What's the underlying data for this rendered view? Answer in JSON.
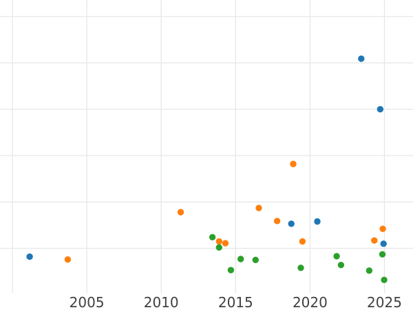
{
  "figure": {
    "background": "#ffffff",
    "grid_color": "#e7e7e7",
    "tick_label_color": "#3f3f3f"
  },
  "chart_data": {
    "type": "scatter",
    "title": "",
    "xlabel": "",
    "ylabel": "",
    "legend_position": "none",
    "grid": true,
    "x_tick_labels": [
      "2005",
      "2010",
      "2015",
      "2020",
      "2025"
    ],
    "x_tick_values": [
      2005,
      2010,
      2015,
      2020,
      2025
    ],
    "x_gridline_values": [
      2000,
      2005,
      2010,
      2015,
      2020,
      2025
    ],
    "xlim": [
      1999.17,
      2026.92
    ],
    "y_tick_labels_visible": false,
    "y_gridline_units": [
      1,
      2,
      3,
      4,
      5,
      6
    ],
    "ylim_units": [
      0,
      6.36
    ],
    "marker": {
      "shape": "circle",
      "radius_px": 4.7
    },
    "series": [
      {
        "name": "series-blue",
        "color": "#1f77b4",
        "points": [
          {
            "x": 2001.16,
            "y": 0.82
          },
          {
            "x": 2018.74,
            "y": 1.53
          },
          {
            "x": 2020.49,
            "y": 1.58
          },
          {
            "x": 2023.44,
            "y": 5.09
          },
          {
            "x": 2024.72,
            "y": 4.0
          },
          {
            "x": 2024.94,
            "y": 1.1
          }
        ]
      },
      {
        "name": "series-orange",
        "color": "#ff7f0e",
        "points": [
          {
            "x": 2003.72,
            "y": 0.76
          },
          {
            "x": 2011.31,
            "y": 1.78
          },
          {
            "x": 2013.89,
            "y": 1.15
          },
          {
            "x": 2014.31,
            "y": 1.11
          },
          {
            "x": 2016.56,
            "y": 1.87
          },
          {
            "x": 2017.79,
            "y": 1.59
          },
          {
            "x": 2018.87,
            "y": 2.82
          },
          {
            "x": 2019.49,
            "y": 1.15
          },
          {
            "x": 2024.32,
            "y": 1.17
          },
          {
            "x": 2024.89,
            "y": 1.42
          }
        ]
      },
      {
        "name": "series-green",
        "color": "#2ca02c",
        "points": [
          {
            "x": 2013.44,
            "y": 1.24
          },
          {
            "x": 2013.89,
            "y": 1.02
          },
          {
            "x": 2014.68,
            "y": 0.53
          },
          {
            "x": 2015.34,
            "y": 0.77
          },
          {
            "x": 2016.34,
            "y": 0.75
          },
          {
            "x": 2019.38,
            "y": 0.58
          },
          {
            "x": 2021.79,
            "y": 0.83
          },
          {
            "x": 2022.08,
            "y": 0.64
          },
          {
            "x": 2023.98,
            "y": 0.52
          },
          {
            "x": 2024.86,
            "y": 0.87
          },
          {
            "x": 2024.98,
            "y": 0.32
          }
        ]
      }
    ]
  }
}
